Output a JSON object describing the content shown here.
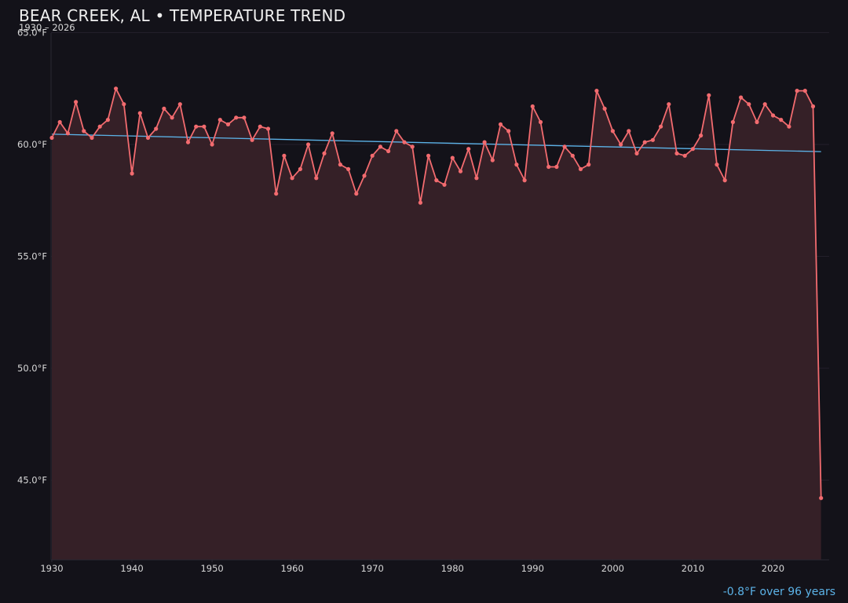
{
  "header": {
    "title": "BEAR CREEK, AL • TEMPERATURE TREND",
    "subtitle": "1930 – 2026"
  },
  "footer": {
    "trend_note": "-0.8°F over 96 years"
  },
  "colors": {
    "background": "#131219",
    "line": "#f26b6f",
    "fill": "#352027",
    "trend": "#5cb3e8",
    "grid": "#2a2430",
    "tick_text": "#d8d8d8"
  },
  "chart_data": {
    "type": "line",
    "title": "BEAR CREEK, AL • TEMPERATURE TREND",
    "subtitle": "1930 – 2026",
    "xlabel": "",
    "ylabel": "",
    "xlim": [
      1930,
      2027
    ],
    "ylim": [
      41.45,
      65.0
    ],
    "grid": true,
    "legend": null,
    "y_ticks": [
      "65.0°F",
      "60.0°F",
      "55.0°F",
      "50.0°F",
      "45.0°F"
    ],
    "y_tick_values": [
      65,
      60,
      55,
      50,
      45
    ],
    "x_ticks": [
      "1930",
      "1940",
      "1950",
      "1960",
      "1970",
      "1980",
      "1990",
      "2000",
      "2010",
      "2020"
    ],
    "x_tick_values": [
      1930,
      1940,
      1950,
      1960,
      1970,
      1980,
      1990,
      2000,
      2010,
      2020
    ],
    "annotations": [
      "-0.8°F over 96 years"
    ],
    "series": [
      {
        "name": "Annual mean temperature (°F)",
        "x": [
          1930,
          1931,
          1932,
          1933,
          1934,
          1935,
          1936,
          1937,
          1938,
          1939,
          1940,
          1941,
          1942,
          1943,
          1944,
          1945,
          1946,
          1947,
          1948,
          1949,
          1950,
          1951,
          1952,
          1953,
          1954,
          1955,
          1956,
          1957,
          1958,
          1959,
          1960,
          1961,
          1962,
          1963,
          1964,
          1965,
          1966,
          1967,
          1968,
          1969,
          1970,
          1971,
          1972,
          1973,
          1974,
          1975,
          1976,
          1977,
          1978,
          1979,
          1980,
          1981,
          1982,
          1983,
          1984,
          1985,
          1986,
          1987,
          1988,
          1989,
          1990,
          1991,
          1992,
          1993,
          1994,
          1995,
          1996,
          1997,
          1998,
          1999,
          2000,
          2001,
          2002,
          2003,
          2004,
          2005,
          2006,
          2007,
          2008,
          2009,
          2010,
          2011,
          2012,
          2013,
          2014,
          2015,
          2016,
          2017,
          2018,
          2019,
          2020,
          2021,
          2022,
          2023,
          2024,
          2025,
          2026
        ],
        "values": [
          60.3,
          61.0,
          60.5,
          61.9,
          60.6,
          60.3,
          60.8,
          61.1,
          62.5,
          61.8,
          58.7,
          61.4,
          60.3,
          60.7,
          61.6,
          61.2,
          61.8,
          60.1,
          60.8,
          60.8,
          60.0,
          61.1,
          60.9,
          61.2,
          61.2,
          60.2,
          60.8,
          60.7,
          57.8,
          59.5,
          58.5,
          58.9,
          60.0,
          58.5,
          59.6,
          60.5,
          59.1,
          58.9,
          57.8,
          58.6,
          59.5,
          59.9,
          59.7,
          60.6,
          60.1,
          59.9,
          57.4,
          59.5,
          58.4,
          58.2,
          59.4,
          58.8,
          59.8,
          58.5,
          60.1,
          59.3,
          60.9,
          60.6,
          59.1,
          58.4,
          61.7,
          61.0,
          59.0,
          59.0,
          59.9,
          59.5,
          58.9,
          59.1,
          62.4,
          61.6,
          60.6,
          60.0,
          60.6,
          59.6,
          60.1,
          60.2,
          60.8,
          61.8,
          59.6,
          59.5,
          59.8,
          60.4,
          62.2,
          59.1,
          58.4,
          61.0,
          62.1,
          61.8,
          61.0,
          61.8,
          61.3,
          61.1,
          60.8,
          62.4,
          62.4,
          61.7,
          44.2
        ]
      },
      {
        "name": "Linear trend",
        "x": [
          1930,
          2026
        ],
        "values": [
          60.46,
          59.68
        ]
      }
    ]
  }
}
